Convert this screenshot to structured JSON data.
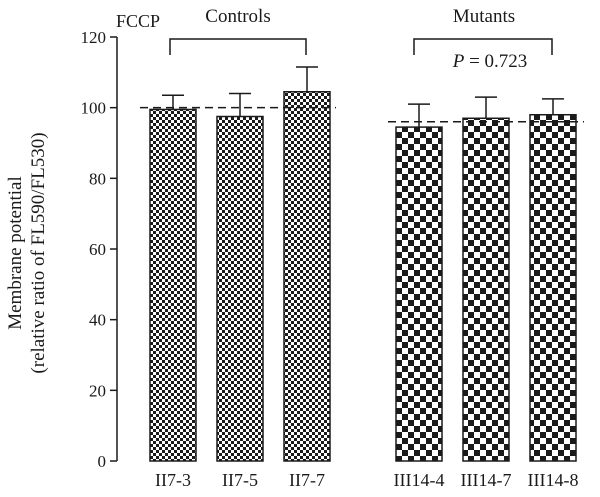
{
  "chart_data": {
    "type": "bar",
    "title_label": "FCCP",
    "ylabel_line1": "Membrane potential",
    "ylabel_line2": "(relative ratio of FL590/FL530)",
    "ylim": [
      0,
      120
    ],
    "yticks": [
      0,
      20,
      40,
      60,
      80,
      100,
      120
    ],
    "grid": false,
    "groups": [
      {
        "name": "Controls",
        "pattern": "fine-checker",
        "categories": [
          "II7-3",
          "II7-5",
          "II7-7"
        ],
        "values": [
          99.5,
          97.5,
          104.5
        ],
        "errors": [
          4.0,
          6.5,
          7.0
        ],
        "reference_line": 100,
        "annotation": ""
      },
      {
        "name": "Mutants",
        "pattern": "coarse-checker",
        "categories": [
          "III14-4",
          "III14-7",
          "III14-8"
        ],
        "values": [
          94.5,
          97.0,
          98.0
        ],
        "errors": [
          6.5,
          6.0,
          4.5
        ],
        "reference_line": 96,
        "annotation": "P = 0.723"
      }
    ],
    "colors": {
      "bar_dark": "#1a1a1a",
      "bar_light": "#ffffff",
      "axis": "#1a1a1a"
    }
  }
}
